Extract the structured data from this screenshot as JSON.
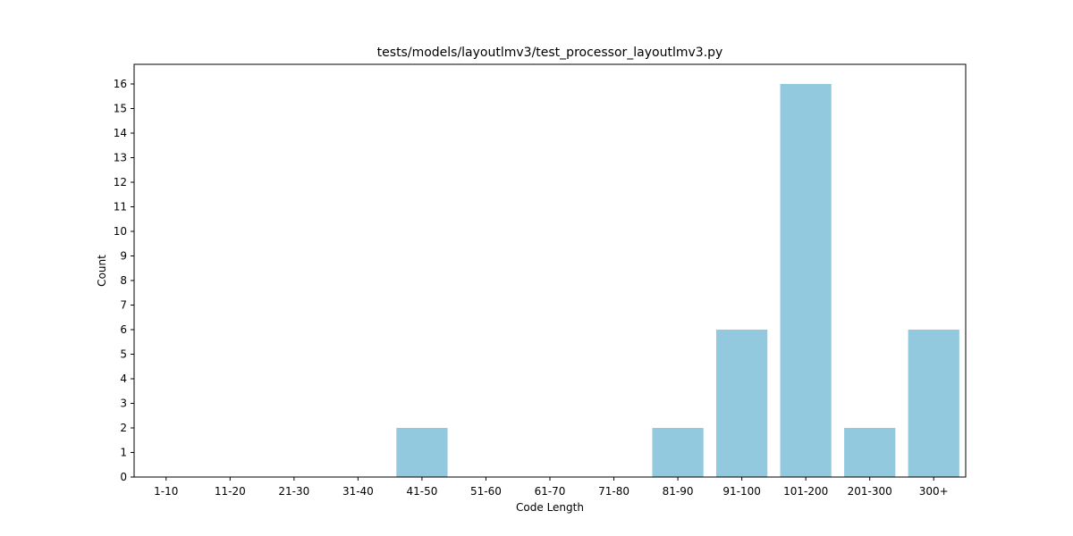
{
  "chart_data": {
    "type": "bar",
    "title": "tests/models/layoutlmv3/test_processor_layoutlmv3.py",
    "xlabel": "Code Length",
    "ylabel": "Count",
    "categories": [
      "1-10",
      "11-20",
      "21-30",
      "31-40",
      "41-50",
      "51-60",
      "61-70",
      "71-80",
      "81-90",
      "91-100",
      "101-200",
      "201-300",
      "300+"
    ],
    "values": [
      0,
      0,
      0,
      0,
      2,
      0,
      0,
      0,
      2,
      6,
      16,
      2,
      6
    ],
    "yticks": [
      0,
      1,
      2,
      3,
      4,
      5,
      6,
      7,
      8,
      9,
      10,
      11,
      12,
      13,
      14,
      15,
      16
    ],
    "ylim": [
      0,
      16.8
    ],
    "grid": false,
    "bar_color": "#92c9de",
    "axis_color": "#000000"
  }
}
